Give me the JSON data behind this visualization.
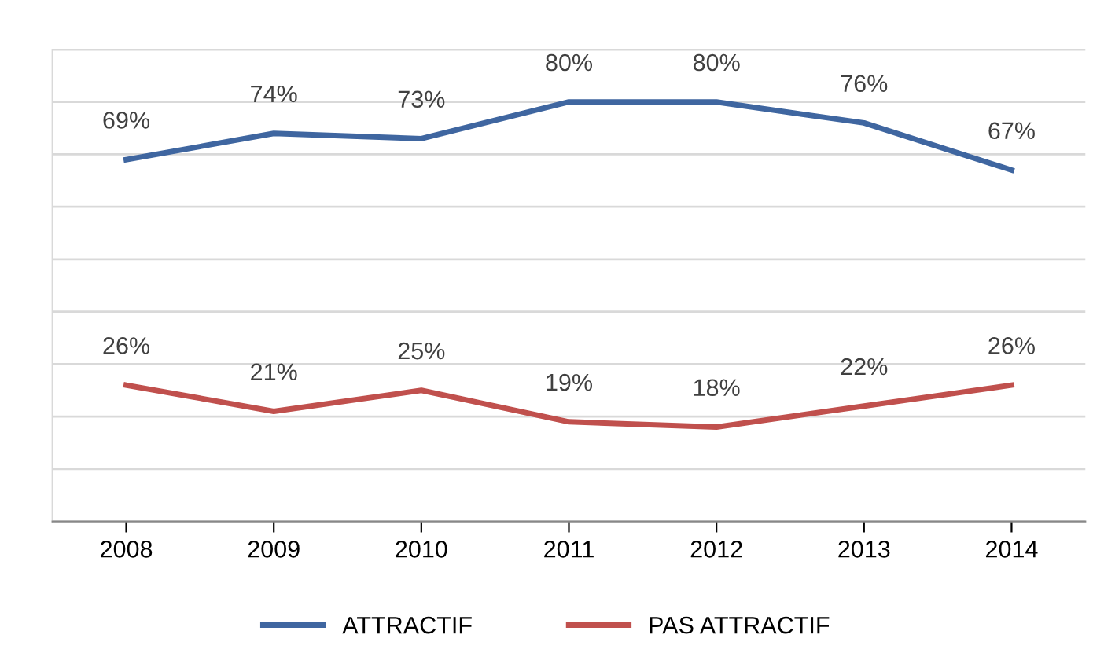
{
  "chart_data": {
    "type": "line",
    "categories": [
      "2008",
      "2009",
      "2010",
      "2011",
      "2012",
      "2013",
      "2014"
    ],
    "series": [
      {
        "name": "ATTRACTIF",
        "color": "#3f66a0",
        "values": [
          69,
          74,
          73,
          80,
          80,
          76,
          67
        ],
        "value_labels": [
          "69%",
          "74%",
          "73%",
          "80%",
          "80%",
          "76%",
          "67%"
        ]
      },
      {
        "name": "PAS ATTRACTIF",
        "color": "#c0504d",
        "values": [
          26,
          21,
          25,
          19,
          18,
          22,
          26
        ],
        "value_labels": [
          "26%",
          "21%",
          "25%",
          "19%",
          "18%",
          "22%",
          "26%"
        ]
      }
    ],
    "ylim": [
      0,
      90
    ],
    "yticks": [
      {
        "value": 0,
        "label": null
      },
      {
        "value": 10,
        "label": null
      },
      {
        "value": 20,
        "label": null
      },
      {
        "value": 30,
        "label": null
      },
      {
        "value": 40,
        "label": null
      },
      {
        "value": 50,
        "label": null
      },
      {
        "value": 60,
        "label": null
      },
      {
        "value": 70,
        "label": null
      },
      {
        "value": 80,
        "label": null
      },
      {
        "value": 90,
        "label": null
      }
    ],
    "tick_labels": "x",
    "grid": "y",
    "legend": "bottom",
    "marker": "none",
    "line_style": "solid"
  }
}
